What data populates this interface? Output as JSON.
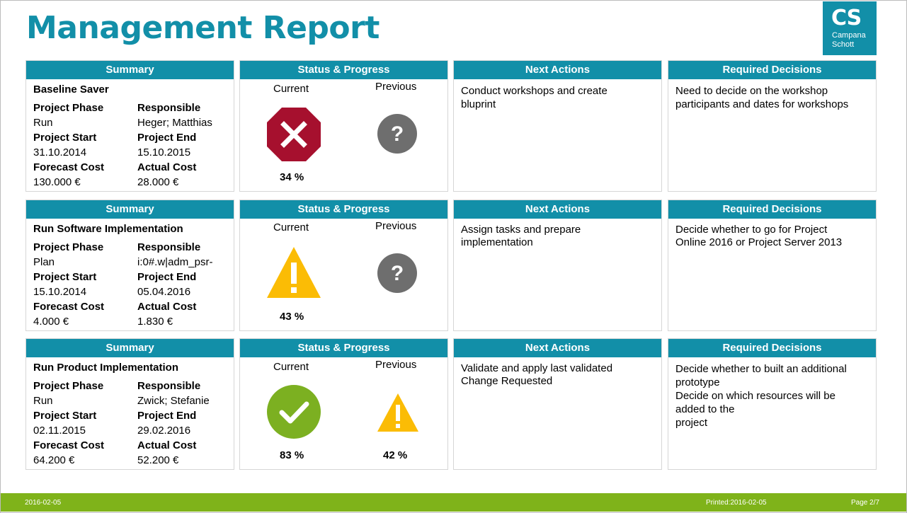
{
  "page": {
    "title": "Management Report"
  },
  "logo": {
    "mark": "CS",
    "line1": "Campana",
    "line2": "Schott"
  },
  "headers": {
    "summary": "Summary",
    "status": "Status & Progress",
    "next": "Next Actions",
    "decisions": "Required Decisions"
  },
  "labels": {
    "phase": "Project Phase",
    "responsible": "Responsible",
    "start": "Project Start",
    "end": "Project End",
    "forecast": "Forecast Cost",
    "actual": "Actual Cost",
    "current": "Current",
    "previous": "Previous"
  },
  "projects": [
    {
      "name": "Baseline Saver",
      "phase": "Run",
      "responsible": "Heger; Matthias",
      "start": "31.10.2014",
      "end": "15.10.2015",
      "forecast": "130.000 €",
      "actual": "28.000 €",
      "current_status": "stop-red-icon",
      "current_pct": "34 %",
      "previous_status": "unknown-gray-icon",
      "previous_pct": "",
      "next_actions": "Conduct workshops and create\nbluprint",
      "decisions": "Need to decide on the workshop\nparticipants and dates for workshops"
    },
    {
      "name": "Run Software Implementation",
      "phase": "Plan",
      "responsible": "i:0#.w|adm_psr-",
      "start": "15.10.2014",
      "end": "05.04.2016",
      "forecast": "4.000 €",
      "actual": "1.830 €",
      "current_status": "warning-yellow-icon",
      "current_pct": "43 %",
      "previous_status": "unknown-gray-icon",
      "previous_pct": "",
      "next_actions": "Assign tasks and prepare\nimplementation",
      "decisions": "Decide whether to go for Project\nOnline 2016 or Project Server 2013"
    },
    {
      "name": "Run Product Implementation",
      "phase": "Run",
      "responsible": "Zwick; Stefanie",
      "start": "02.11.2015",
      "end": "29.02.2016",
      "forecast": "64.200 €",
      "actual": "52.200 €",
      "current_status": "ok-green-icon",
      "current_pct": "83 %",
      "previous_status": "warning-yellow-icon",
      "previous_pct": "42 %",
      "next_actions": "Validate and apply last validated\nChange Requested",
      "decisions": "Decide whether to built an additional\nprototype\nDecide on which resources will be\nadded to the\nproject"
    }
  ],
  "footer": {
    "date": "2016-02-05",
    "printed": "Printed:2016-02-05",
    "page": "Page 2/7"
  },
  "colors": {
    "accent": "#128fa8",
    "footer": "#7fb31a",
    "red": "#a6102e",
    "yellow": "#fbbc05",
    "green": "#7cb021",
    "gray": "#6e6e6e"
  }
}
